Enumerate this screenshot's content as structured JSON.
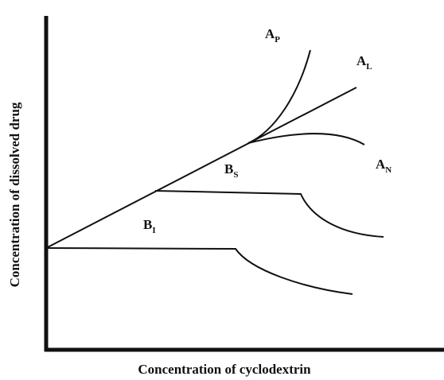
{
  "axes": {
    "y_label": "Concentration of dissolved drug",
    "x_label": "Concentration of cyclodextrin"
  },
  "curves": [
    {
      "main": "A",
      "sub": "P"
    },
    {
      "main": "A",
      "sub": "L"
    },
    {
      "main": "A",
      "sub": "N"
    },
    {
      "main": "B",
      "sub": "S"
    },
    {
      "main": "B",
      "sub": "I"
    }
  ]
}
